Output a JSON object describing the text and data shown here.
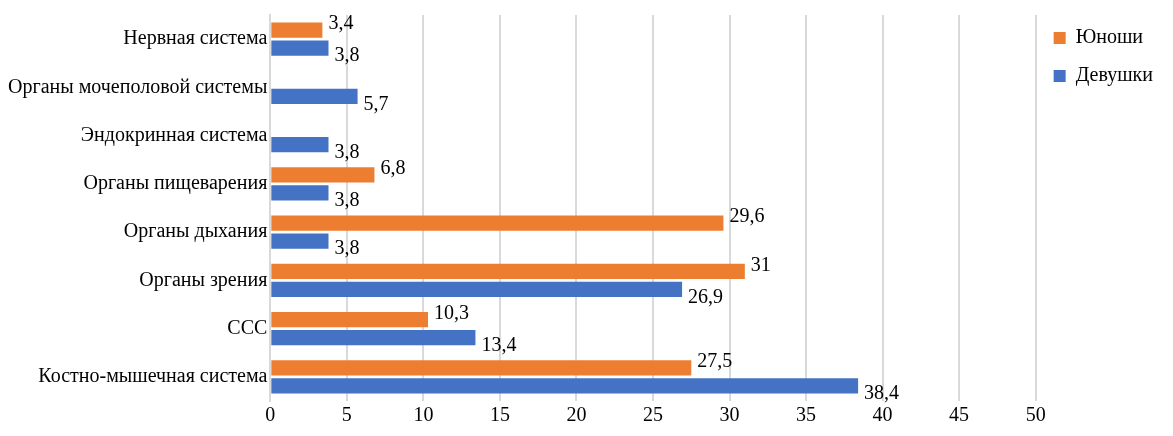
{
  "chart_data": {
    "type": "bar",
    "orientation": "horizontal",
    "categories": [
      "Нервная система",
      "Органы мочеполовой системы",
      "Эндокринная система",
      "Органы пищеварения",
      "Органы дыхания",
      "Органы зрения",
      "ССС",
      "Костно-мышечная система"
    ],
    "series": [
      {
        "name": "Юноши",
        "color": "#ed7d31",
        "values": [
          3.4,
          null,
          null,
          6.8,
          29.6,
          31,
          10.3,
          27.5
        ],
        "value_labels": [
          "3,4",
          null,
          null,
          "6,8",
          "29,6",
          "31",
          "10,3",
          "27,5"
        ]
      },
      {
        "name": "Девушки",
        "color": "#4472c4",
        "values": [
          3.8,
          5.7,
          3.8,
          3.8,
          3.8,
          26.9,
          13.4,
          38.4
        ],
        "value_labels": [
          "3,8",
          "5,7",
          "3,8",
          "3,8",
          "3,8",
          "26,9",
          "13,4",
          "38,4"
        ]
      }
    ],
    "xlim": [
      0,
      50
    ],
    "xticks": [
      0,
      5,
      10,
      15,
      20,
      25,
      30,
      35,
      40,
      45,
      50
    ],
    "grid": "x",
    "legend": "top right"
  }
}
